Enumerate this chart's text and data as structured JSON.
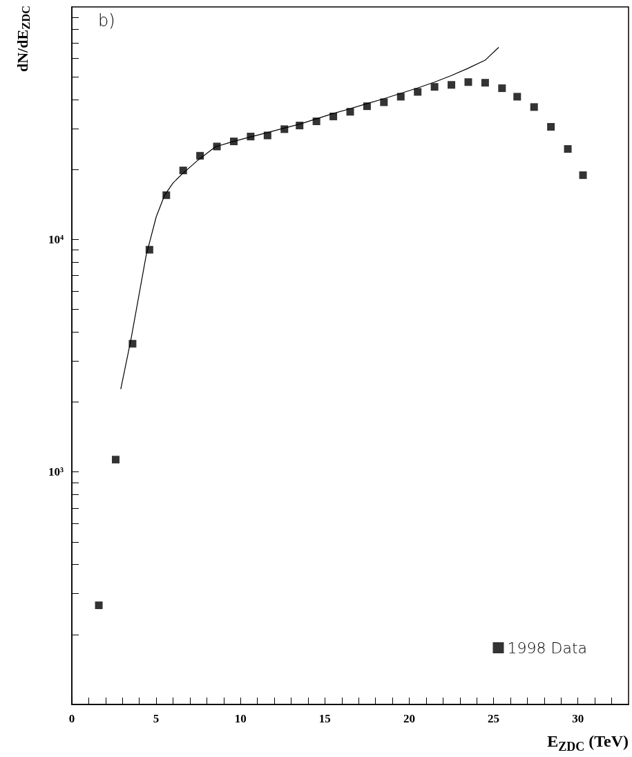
{
  "chart_data": {
    "type": "scatter",
    "xlabel": "E$_{ZDC}$ (TeV)",
    "ylabel": "dN/dE$_{ZDC}$",
    "annotations": [
      "b)"
    ],
    "log": "y",
    "grid": false,
    "legend": "bottom right",
    "marker": "square",
    "xlim": [
      0,
      33
    ],
    "xticks": [
      0,
      {
        "value": 1,
        "label": null
      },
      {
        "value": 2,
        "label": null
      },
      {
        "value": 3,
        "label": null
      },
      {
        "value": 4,
        "label": null
      },
      5,
      {
        "value": 6,
        "label": null
      },
      {
        "value": 7,
        "label": null
      },
      {
        "value": 8,
        "label": null
      },
      {
        "value": 9,
        "label": null
      },
      10,
      {
        "value": 11,
        "label": null
      },
      {
        "value": 12,
        "label": null
      },
      {
        "value": 13,
        "label": null
      },
      {
        "value": 14,
        "label": null
      },
      15,
      {
        "value": 16,
        "label": null
      },
      {
        "value": 17,
        "label": null
      },
      {
        "value": 18,
        "label": null
      },
      {
        "value": 19,
        "label": null
      },
      20,
      {
        "value": 21,
        "label": null
      },
      {
        "value": 22,
        "label": null
      },
      {
        "value": 23,
        "label": null
      },
      {
        "value": 24,
        "label": null
      },
      25,
      {
        "value": 26,
        "label": null
      },
      {
        "value": 27,
        "label": null
      },
      {
        "value": 28,
        "label": null
      },
      {
        "value": 29,
        "label": null
      },
      30,
      {
        "value": 31,
        "label": null
      },
      {
        "value": 32,
        "label": null
      }
    ],
    "ylim": [
      100,
      100000
    ],
    "yticks": [
      {
        "value": 200,
        "label": null
      },
      {
        "value": 300,
        "label": null
      },
      {
        "value": 400,
        "label": null
      },
      {
        "value": 500,
        "label": null
      },
      {
        "value": 600,
        "label": null
      },
      {
        "value": 700,
        "label": null
      },
      {
        "value": 800,
        "label": null
      },
      {
        "value": 900,
        "label": null
      },
      {
        "value": 1000,
        "label": "10³"
      },
      {
        "value": 2000,
        "label": null
      },
      {
        "value": 3000,
        "label": null
      },
      {
        "value": 4000,
        "label": null
      },
      {
        "value": 5000,
        "label": null
      },
      {
        "value": 6000,
        "label": null
      },
      {
        "value": 7000,
        "label": null
      },
      {
        "value": 8000,
        "label": null
      },
      {
        "value": 9000,
        "label": null
      },
      {
        "value": 10000,
        "label": "10⁴"
      },
      {
        "value": 20000,
        "label": null
      },
      {
        "value": 30000,
        "label": null
      },
      {
        "value": 40000,
        "label": null
      },
      {
        "value": 50000,
        "label": null
      },
      {
        "value": 60000,
        "label": null
      },
      {
        "value": 70000,
        "label": null
      },
      {
        "value": 80000,
        "label": null
      },
      {
        "value": 90000,
        "label": null
      }
    ],
    "series": [
      {
        "name": "1998 Data",
        "color": "#000000",
        "x": [
          1.6,
          2.6,
          3.6,
          4.6,
          5.6,
          6.6,
          7.6,
          8.6,
          9.6,
          10.6,
          11.6,
          12.6,
          13.5,
          14.5,
          15.5,
          16.5,
          17.5,
          18.5,
          19.5,
          20.5,
          21.5,
          22.5,
          23.5,
          24.5,
          25.5,
          26.4,
          27.4,
          28.4,
          29.4,
          30.3
        ],
        "values": [
          267,
          1130,
          3560,
          9030,
          15500,
          19800,
          22900,
          25100,
          26400,
          27700,
          28000,
          29800,
          30900,
          32200,
          33800,
          35400,
          37400,
          38900,
          41100,
          43100,
          45300,
          46200,
          47500,
          47200,
          44700,
          41100,
          37100,
          30500,
          24500,
          18900
        ]
      },
      {
        "type": "line",
        "color": "#000000",
        "marker": "none",
        "line_style": "solid",
        "x": [
          2.9,
          3.5,
          4.4,
          5.0,
          5.5,
          6.0,
          6.5,
          7.5,
          8.5,
          9.5,
          10.5,
          11.5,
          12.5,
          13.5,
          14.5,
          15.5,
          16.5,
          17.5,
          18.5,
          19.5,
          20.5,
          21.5,
          22.5,
          23.5,
          24.5,
          25.3
        ],
        "values": [
          2270,
          3700,
          8500,
          12500,
          15500,
          17500,
          19000,
          22000,
          25000,
          26300,
          27500,
          28700,
          30000,
          31300,
          33000,
          34800,
          36500,
          38400,
          40300,
          42500,
          44800,
          47500,
          50700,
          54500,
          59000,
          67000
        ]
      }
    ]
  }
}
